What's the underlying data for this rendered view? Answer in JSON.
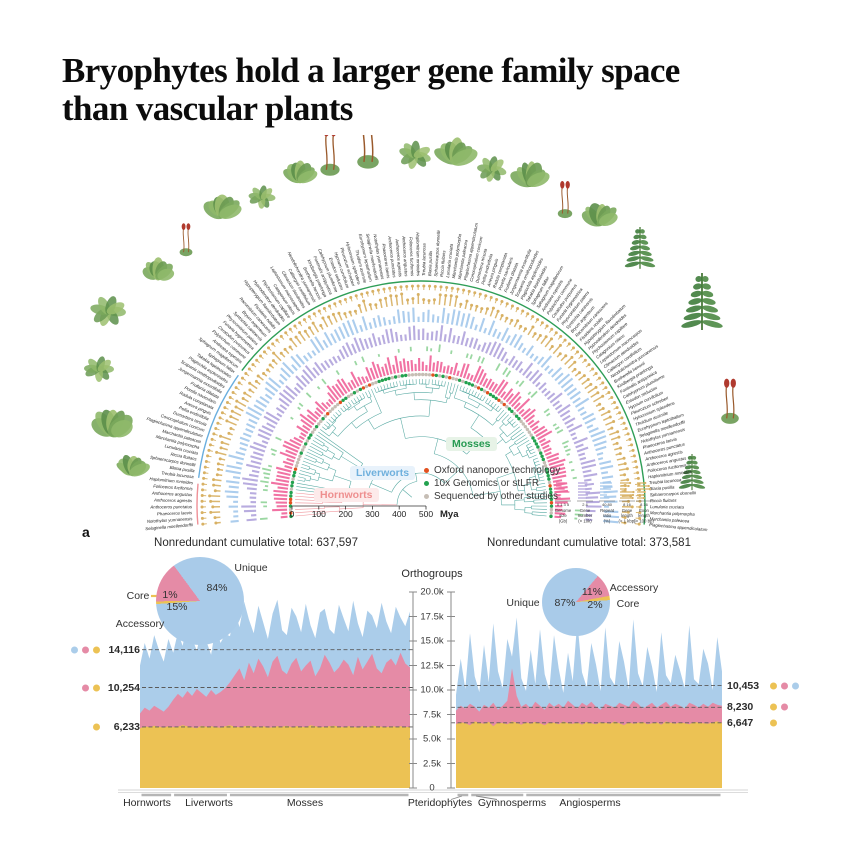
{
  "title": {
    "line1": "Bryophytes hold a larger gene family space",
    "line2": "than vascular plants"
  },
  "panel_label": "a",
  "colors": {
    "unique": "#abcdea",
    "accessory": "#e58ba6",
    "core": "#ecc254",
    "unique_pie": "#a9cbe9",
    "dashed": "#5a5a5a",
    "branch": "#55a8a1",
    "hornwort_branch": "#ef9097",
    "arc_mosses": "#2f9e57",
    "arc_liverworts": "#69aede",
    "arc_hornworts": "#ef9097",
    "tip_nanopore": "#e2511f",
    "tip_10x": "#23a24f",
    "tip_other": "#c6beb5",
    "ring_genome": "#f0679c",
    "ring_green": "#93d49b",
    "ring_purple": "#b3a6dd",
    "ring_blue": "#a5c9ec",
    "ring_gold": "#d8b164"
  },
  "fan": {
    "leaf_count": 128,
    "hornwort_leaves": 8,
    "liverwort_leaves": 28,
    "clades": [
      {
        "label": "Mosses",
        "fg": "#279a52",
        "bg": "#e7f3e7"
      },
      {
        "label": "Liverworts",
        "fg": "#6fb0dd",
        "bg": "#e8f2fb"
      },
      {
        "label": "Hornworts",
        "fg": "#ee8f8f",
        "bg": "#fdeaea"
      }
    ],
    "legend": [
      {
        "label": "Oxford nanopore technology",
        "color": "#e2511f"
      },
      {
        "label": "10x Genomics or stLFR",
        "color": "#23a24f"
      },
      {
        "label": "Sequenced by other studies",
        "color": "#c6beb5"
      }
    ],
    "time_axis": {
      "ticks": [
        "0",
        "100",
        "200",
        "300",
        "400",
        "500"
      ],
      "unit": "Mya"
    },
    "ring_scales": [
      {
        "label": "Genome size (Gb)",
        "ticks": "0 1 3 5",
        "color": "#f0679c",
        "type": "bar"
      },
      {
        "label": "Gene number (× 10k)",
        "ticks": "2 4",
        "color": "#b3a6dd",
        "type": "bar"
      },
      {
        "label": "Repeat ratio (%)",
        "ticks": "40 80",
        "color": "#a5c9ec",
        "type": "bar"
      },
      {
        "label": "Gene length (> 1 kbp)",
        "ticks": "8 16",
        "color": "#d8b164",
        "type": "dotbar"
      },
      {
        "label": "Exon length (> 100 bp)",
        "ticks": "8 16",
        "color": "#d8b164",
        "type": "lollipop"
      }
    ],
    "species_labels_sample": [
      "Selaginella moellendorffii",
      "Notothylas yunnanensis",
      "Phaeoceros laevis",
      "Anthoceros punctatus",
      "Anthoceros agrestis",
      "Anthoceros angustus",
      "Folioceros fuciformis",
      "Haplomitrium mnioides",
      "Treubia lacunosa",
      "Blasia pusilla",
      "Sphaerocarpos donnellii",
      "Riccia fluitans",
      "Lunularia cruciata",
      "Marchantia polymorpha",
      "Marchantia paleacea",
      "Plagiochasma appendiculatum",
      "Conocephalum conicum",
      "Dumortiera hirsuta",
      "Pellia endiviifolia",
      "Aneura pinguis",
      "Radula complanata",
      "Porella navicularis",
      "Frullania dilatata",
      "Jungermannia exsertifolia",
      "Scapania ornithopodioides",
      "Plagiochila asplenioides",
      "Takakia lepidozioides",
      "Sphagnum fallax",
      "Sphagnum magellanicum",
      "Andreaea rupestris",
      "Polytrichum commune",
      "Ceratodon purpureus",
      "Funaria hygrometrica",
      "Physcomitrium patens",
      "Syntrichia caninervis",
      "Bryum argenteum",
      "Racomitrium canescens",
      "Fissidens nobilis",
      "Hypopterygium flavolimbatum",
      "Hypnodendron dendroides",
      "Ptychostomum capillare",
      "Catagonium nitens",
      "Leptostomum macrocarpon",
      "Climacium dendroides",
      "Calliergon cordifolium",
      "Neodolichomitra yunnanensis",
      "Brotherella henonii",
      "Kindbergia praelonga",
      "Fontinalis antipyretica",
      "Calohypnum plumiforme",
      "Entodon seductrix",
      "Hypnum curvifolium",
      "Pleurozium schreberi",
      "Hylocomium splendens",
      "Thuidium assimile",
      "Eurohypnum leptothallum"
    ]
  },
  "y_axis": {
    "title": "Orthogroups",
    "tick_labels": [
      "20.0k",
      "17.5k",
      "15.0k",
      "12.5k",
      "10.0k",
      "7.5k",
      "5.0k",
      "2.5k",
      "0"
    ],
    "tick_values": [
      20000,
      17500,
      15000,
      12500,
      10000,
      7500,
      5000,
      2500,
      0
    ]
  },
  "chart_data": [
    {
      "type": "pie",
      "title": "Nonredundant cumulative total: 637,597",
      "total": 637597,
      "slices": [
        {
          "label": "Unique",
          "value": 84,
          "pct": "84%",
          "color_key": "unique_pie"
        },
        {
          "label": "Accessory",
          "value": 15,
          "pct": "15%",
          "color_key": "accessory"
        },
        {
          "label": "Core",
          "value": 1,
          "pct": "1%",
          "color_key": "core"
        }
      ]
    },
    {
      "type": "pie",
      "title": "Nonredundant cumulative total: 373,581",
      "total": 373581,
      "slices": [
        {
          "label": "Unique",
          "value": 87,
          "pct": "87%",
          "color_key": "unique_pie"
        },
        {
          "label": "Accessory",
          "value": 11,
          "pct": "11%",
          "color_key": "accessory"
        },
        {
          "label": "Core",
          "value": 2,
          "pct": "2%",
          "color_key": "core"
        }
      ]
    },
    {
      "type": "stacked-area",
      "ylabel": "Orthogroups",
      "ylim": [
        0,
        20000
      ],
      "groups": [
        {
          "label": "Hornworts",
          "n": 7
        },
        {
          "label": "Liverworts",
          "n": 12
        },
        {
          "label": "Mosses",
          "n": 39
        }
      ],
      "ref_lines": [
        {
          "label": "14,116",
          "value": 14116,
          "dots": [
            "unique",
            "accessory",
            "core"
          ]
        },
        {
          "label": "10,254",
          "value": 10254,
          "dots": [
            "accessory",
            "core"
          ]
        },
        {
          "label": "6,233",
          "value": 6233,
          "dots": [
            "core"
          ]
        }
      ],
      "series_stacked_tops": {
        "core": [
          6100,
          6300,
          6200,
          6350,
          6250,
          6150,
          6300,
          6200,
          6250,
          6400,
          6300,
          6200,
          6100,
          6350,
          6250,
          6300,
          6200,
          6150,
          6300,
          6400,
          6250,
          6200,
          6300,
          6350,
          6200,
          6250,
          6300,
          6150,
          6200,
          6300,
          6250,
          6350,
          6200,
          6300,
          6250,
          6200,
          6400,
          6300,
          6200,
          6250,
          6300,
          6350,
          6250,
          6200,
          6300,
          6250,
          6150,
          6300,
          6200,
          6350,
          6300,
          6250,
          6200,
          6300,
          6250,
          6300,
          6200,
          6250
        ],
        "accessory": [
          7600,
          8200,
          7900,
          8400,
          8100,
          7800,
          8300,
          9000,
          9600,
          9200,
          9900,
          9400,
          10100,
          9700,
          9300,
          10000,
          9500,
          9800,
          10200,
          10800,
          11500,
          12200,
          11000,
          12800,
          11700,
          13200,
          12400,
          11300,
          12900,
          13500,
          12000,
          11600,
          12700,
          13300,
          11900,
          12500,
          13000,
          11400,
          12200,
          13600,
          12800,
          11800,
          12300,
          13100,
          12600,
          11500,
          13400,
          12100,
          12900,
          13700,
          12200,
          11700,
          12800,
          13200,
          12500,
          13800,
          12700,
          12300
        ],
        "unique": [
          12500,
          14800,
          13200,
          15600,
          14100,
          12900,
          15200,
          13800,
          15900,
          14500,
          16800,
          15300,
          14000,
          16200,
          15000,
          13600,
          16500,
          14800,
          15700,
          15500,
          18200,
          16400,
          19000,
          17200,
          15800,
          18600,
          16900,
          15200,
          17800,
          19200,
          16100,
          15600,
          18400,
          17500,
          15900,
          18800,
          16600,
          15300,
          17900,
          18300,
          16200,
          15700,
          18700,
          17300,
          16000,
          19100,
          16800,
          15400,
          18100,
          17600,
          16300,
          18900,
          17000,
          15800,
          18500,
          17400,
          16500,
          18000
        ]
      }
    },
    {
      "type": "stacked-area",
      "ylabel": "Orthogroups",
      "ylim": [
        0,
        20000
      ],
      "groups": [
        {
          "label": "Pteridophytes",
          "n": 3
        },
        {
          "label": "Gymnosperms",
          "n": 12
        },
        {
          "label": "Angiosperms",
          "n": 43
        }
      ],
      "ref_lines": [
        {
          "label": "10,453",
          "value": 10453,
          "dots": [
            "core",
            "accessory",
            "unique"
          ]
        },
        {
          "label": "8,230",
          "value": 8230,
          "dots": [
            "core",
            "accessory"
          ]
        },
        {
          "label": "6,647",
          "value": 6647,
          "dots": [
            "core"
          ]
        }
      ],
      "series_stacked_tops": {
        "core": [
          6500,
          6700,
          6600,
          6400,
          6800,
          6650,
          6550,
          6750,
          6300,
          6700,
          6600,
          6500,
          6800,
          6650,
          6450,
          6700,
          6550,
          6750,
          6600,
          6400,
          6700,
          6650,
          6500,
          6800,
          6600,
          6550,
          6700,
          6450,
          6750,
          6600,
          6500,
          6700,
          6650,
          6550,
          6800,
          6600,
          6400,
          6700,
          6550,
          6650,
          6750,
          6500,
          6600,
          6700,
          6450,
          6800,
          6650,
          6550,
          6700,
          6600,
          6500,
          6750,
          6650,
          6600,
          6550,
          6700,
          6800,
          6650
        ],
        "accessory": [
          7900,
          8400,
          8100,
          8600,
          8300,
          7800,
          8500,
          8200,
          8700,
          8000,
          8400,
          8900,
          12200,
          9400,
          8300,
          8600,
          8100,
          8800,
          8400,
          8000,
          8700,
          8300,
          8600,
          8200,
          8900,
          8500,
          8100,
          8700,
          8400,
          8800,
          8300,
          8000,
          8600,
          8400,
          8200,
          8700,
          8500,
          8300,
          8900,
          8600,
          8100,
          8400,
          8700,
          8200,
          8500,
          8800,
          8300,
          8600,
          8400,
          8100,
          8700,
          8500,
          8200,
          8600,
          8300,
          8700,
          8500,
          8400
        ],
        "unique": [
          9500,
          13200,
          10100,
          15800,
          11400,
          9800,
          14600,
          10800,
          16800,
          11900,
          10200,
          15200,
          13400,
          17400,
          11200,
          9900,
          14100,
          10600,
          16200,
          11600,
          10000,
          15600,
          12200,
          9700,
          13800,
          10900,
          17000,
          11800,
          10300,
          14800,
          12600,
          9900,
          16400,
          11300,
          10500,
          15000,
          12900,
          10100,
          17200,
          11700,
          10400,
          14400,
          12400,
          9800,
          15900,
          11500,
          10700,
          13600,
          12000,
          10200,
          16600,
          11100,
          10600,
          14200,
          12700,
          10000,
          15400,
          11900
        ]
      }
    }
  ]
}
